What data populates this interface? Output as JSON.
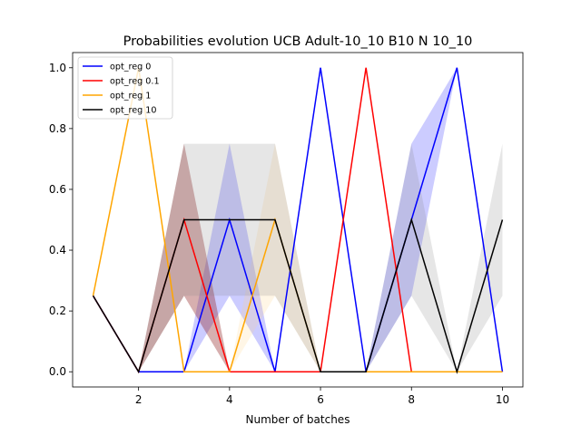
{
  "chart_data": {
    "type": "line",
    "title": "Probabilities evolution UCB Adult-10_10 B10 N 10_10",
    "xlabel": "Number of batches",
    "ylabel": "",
    "xlim": [
      0.55,
      10.45
    ],
    "ylim": [
      -0.05,
      1.05
    ],
    "xticks": [
      2,
      4,
      6,
      8,
      10
    ],
    "yticks": [
      0.0,
      0.2,
      0.4,
      0.6,
      0.8,
      1.0
    ],
    "xtick_labels": [
      "2",
      "4",
      "6",
      "8",
      "10"
    ],
    "ytick_labels": [
      "0.0",
      "0.2",
      "0.4",
      "0.6",
      "0.8",
      "1.0"
    ],
    "grid": false,
    "legend_position": "top-left",
    "x": [
      1,
      2,
      3,
      4,
      5,
      6,
      7,
      8,
      9,
      10
    ],
    "series": [
      {
        "name": "opt_reg 0",
        "color": "#0000ff",
        "values": [
          0.25,
          0.0,
          0.0,
          0.5,
          0.0,
          1.0,
          0.0,
          0.5,
          1.0,
          0.0
        ],
        "band_low": [
          0.25,
          0.0,
          0.0,
          0.25,
          0.0,
          0.0,
          0.0,
          0.25,
          1.0,
          0.0
        ],
        "band_high": [
          0.25,
          0.0,
          0.0,
          0.75,
          0.0,
          0.0,
          0.0,
          0.75,
          1.0,
          0.0
        ]
      },
      {
        "name": "opt_reg 0.1",
        "color": "#ff0000",
        "values": [
          0.25,
          0.0,
          0.5,
          0.0,
          0.0,
          0.0,
          1.0,
          0.0,
          0.0,
          0.0
        ],
        "band_low": [
          0.25,
          0.0,
          0.25,
          0.0,
          0.0,
          0.0,
          0.0,
          0.0,
          0.0,
          0.0
        ],
        "band_high": [
          0.25,
          0.0,
          0.75,
          0.0,
          0.0,
          0.0,
          0.0,
          0.0,
          0.0,
          0.0
        ]
      },
      {
        "name": "opt_reg 1",
        "color": "#ffa500",
        "values": [
          0.25,
          1.0,
          0.0,
          0.0,
          0.5,
          0.0,
          0.0,
          0.0,
          0.0,
          0.0
        ],
        "band_low": [
          0.25,
          0.0,
          0.0,
          0.0,
          0.25,
          0.0,
          0.0,
          0.0,
          0.0,
          0.0
        ],
        "band_high": [
          0.25,
          0.0,
          0.0,
          0.0,
          0.75,
          0.0,
          0.0,
          0.0,
          0.0,
          0.0
        ]
      },
      {
        "name": "opt_reg 10",
        "color": "#000000",
        "values": [
          0.25,
          0.0,
          0.5,
          0.5,
          0.5,
          0.0,
          0.0,
          0.5,
          0.0,
          0.5
        ],
        "band_low": [
          0.25,
          0.0,
          0.25,
          0.25,
          0.25,
          0.0,
          0.0,
          0.25,
          0.0,
          0.25
        ],
        "band_high": [
          0.25,
          0.0,
          0.75,
          0.75,
          0.75,
          0.0,
          0.0,
          0.75,
          0.0,
          0.75
        ]
      }
    ],
    "band_colors": {
      "opt_reg 0": "#0000ff",
      "opt_reg 0.1": "#8b1a1a",
      "opt_reg 1": "#ffd080",
      "opt_reg 10": "#808080"
    }
  }
}
